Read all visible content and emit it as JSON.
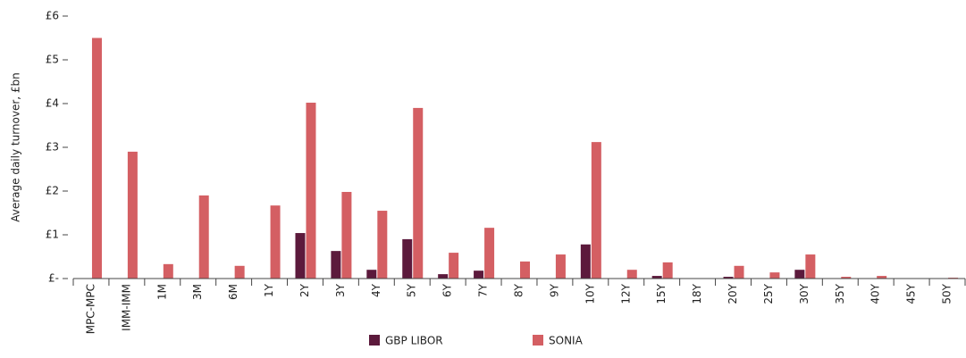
{
  "chart_data": {
    "type": "bar",
    "y_label": "Average daily turnover, £bn",
    "categories": [
      "MPC-MPC",
      "IMM-IMM",
      "1M",
      "3M",
      "6M",
      "1Y",
      "2Y",
      "3Y",
      "4Y",
      "5Y",
      "6Y",
      "7Y",
      "8Y",
      "9Y",
      "10Y",
      "12Y",
      "15Y",
      "18Y",
      "20Y",
      "25Y",
      "30Y",
      "35Y",
      "40Y",
      "45Y",
      "50Y"
    ],
    "series": [
      {
        "name": "GBP LIBOR",
        "color": "#5c1a3c",
        "values": [
          0,
          0,
          0,
          0,
          0,
          0,
          1.04,
          0.63,
          0.2,
          0.9,
          0.1,
          0.18,
          0,
          0,
          0.78,
          0,
          0.06,
          0,
          0.04,
          0,
          0.2,
          0,
          0,
          0,
          0
        ]
      },
      {
        "name": "SONIA",
        "color": "#d45f63",
        "values": [
          5.5,
          2.9,
          0.33,
          1.9,
          0.29,
          1.67,
          4.02,
          1.98,
          1.55,
          3.9,
          0.59,
          1.16,
          0.39,
          0.55,
          3.12,
          0.2,
          0.37,
          0,
          0.29,
          0.14,
          0.55,
          0.04,
          0.06,
          0,
          0.02
        ]
      }
    ],
    "ylim": [
      0,
      6
    ],
    "yticks": [
      {
        "value": 0,
        "label": "£-"
      },
      {
        "value": 1,
        "label": "£1"
      },
      {
        "value": 2,
        "label": "£2"
      },
      {
        "value": 3,
        "label": "£3"
      },
      {
        "value": 4,
        "label": "£4"
      },
      {
        "value": 5,
        "label": "£5"
      },
      {
        "value": 6,
        "label": "£6"
      }
    ],
    "legend": "bottom"
  }
}
